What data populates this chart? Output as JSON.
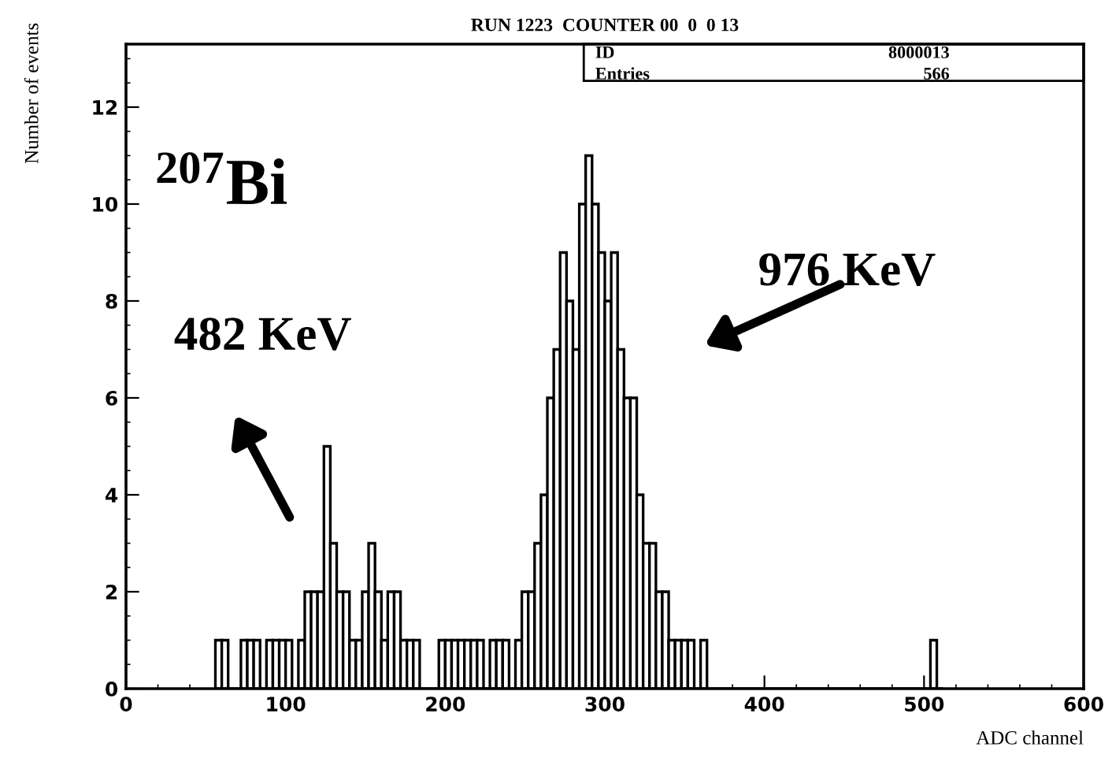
{
  "chart_data": {
    "type": "histogram",
    "title": "RUN 1223  COUNTER 00  0  0 13",
    "xlabel": "ADC channel",
    "ylabel": "Number of events",
    "bins": [
      56,
      60,
      64,
      68,
      72,
      76,
      80,
      84,
      88,
      92,
      96,
      100,
      104,
      108,
      112,
      116,
      120,
      124,
      128,
      132,
      136,
      140,
      144,
      148,
      152,
      156,
      160,
      164,
      168,
      172,
      176,
      180,
      184,
      188,
      192,
      196,
      200,
      204,
      208,
      212,
      216,
      220,
      224,
      228,
      232,
      236,
      240,
      244,
      248,
      252,
      256,
      260,
      264,
      268,
      272,
      276,
      280,
      284,
      288,
      292,
      296,
      300,
      304,
      308,
      312,
      316,
      320,
      324,
      328,
      332,
      336,
      340,
      344,
      348,
      352,
      356,
      360,
      364,
      368,
      372,
      376,
      380,
      384,
      388,
      392,
      396,
      400,
      404,
      408,
      412,
      416,
      420,
      424,
      428,
      432,
      436,
      440,
      444,
      448,
      452,
      456,
      460,
      464,
      468,
      472,
      476,
      480,
      484,
      488,
      492,
      496,
      500,
      504,
      508,
      512
    ],
    "values": [
      1,
      1,
      0,
      0,
      1,
      1,
      1,
      0,
      1,
      1,
      1,
      1,
      0,
      1,
      2,
      2,
      2,
      5,
      3,
      2,
      2,
      1,
      1,
      2,
      3,
      2,
      1,
      2,
      2,
      1,
      1,
      1,
      0,
      0,
      0,
      1,
      1,
      1,
      1,
      1,
      1,
      1,
      0,
      1,
      1,
      1,
      0,
      1,
      2,
      2,
      3,
      4,
      6,
      7,
      9,
      8,
      7,
      10,
      11,
      10,
      9,
      8,
      9,
      7,
      6,
      6,
      4,
      3,
      3,
      2,
      2,
      1,
      1,
      1,
      1,
      0,
      1,
      0,
      0,
      0,
      0,
      0,
      0,
      0,
      0,
      0,
      0,
      0,
      0,
      0,
      0,
      0,
      0,
      0,
      0,
      0,
      0,
      0,
      0,
      0,
      0,
      0,
      0,
      0,
      0,
      0,
      0,
      0,
      0,
      0,
      0,
      0,
      1,
      0
    ],
    "color": "#000000",
    "xlim": [
      0,
      600
    ],
    "ylim": [
      0,
      13.3
    ],
    "xticks": [
      0,
      100,
      200,
      300,
      400,
      500,
      600
    ],
    "yticks": [
      0,
      2,
      4,
      6,
      8,
      10,
      12
    ],
    "grid": false,
    "annotations": [
      "$^{207}$Bi",
      "976 KeV",
      "482 KeV",
      "ID",
      "8000013",
      "Entries",
      "566"
    ]
  }
}
